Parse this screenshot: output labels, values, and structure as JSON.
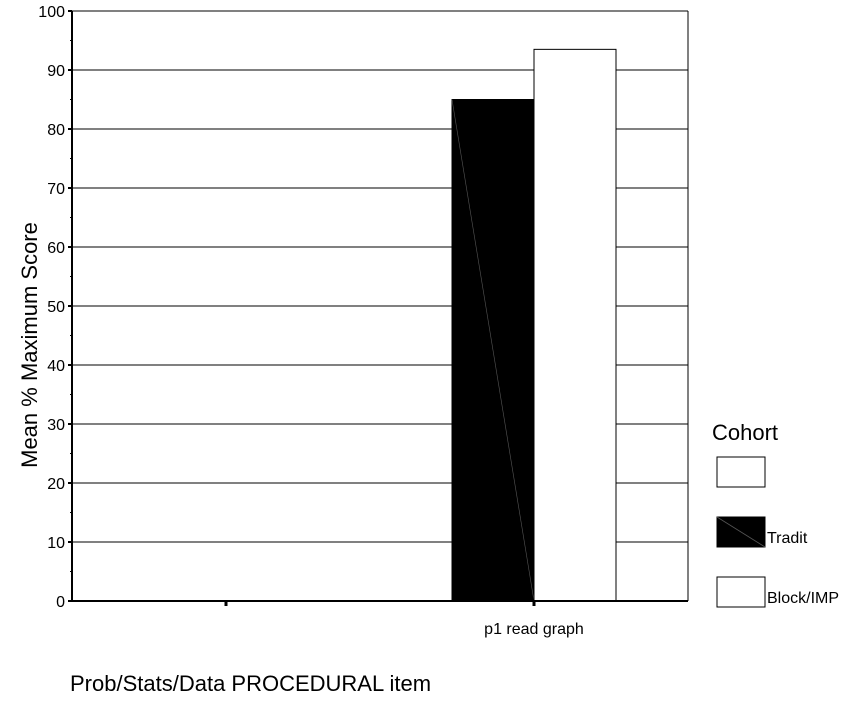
{
  "chart_data": {
    "type": "bar",
    "title": "",
    "xlabel": "Prob/Stats/Data PROCEDURAL item",
    "ylabel": "Mean % Maximum Score",
    "ylim": [
      0,
      100
    ],
    "yticks": [
      0,
      10,
      20,
      30,
      40,
      50,
      60,
      70,
      80,
      90,
      100
    ],
    "grid": true,
    "legend_title": "Cohort",
    "legend_position": "right",
    "categories": [
      "",
      "p1 read graph"
    ],
    "series": [
      {
        "name": "",
        "values": [
          0,
          null
        ],
        "color": "#ffffff"
      },
      {
        "name": "Tradit",
        "values": [
          null,
          85
        ],
        "color": "#000000"
      },
      {
        "name": "Block/IMP",
        "values": [
          null,
          93.5
        ],
        "color": "#ffffff"
      }
    ]
  }
}
